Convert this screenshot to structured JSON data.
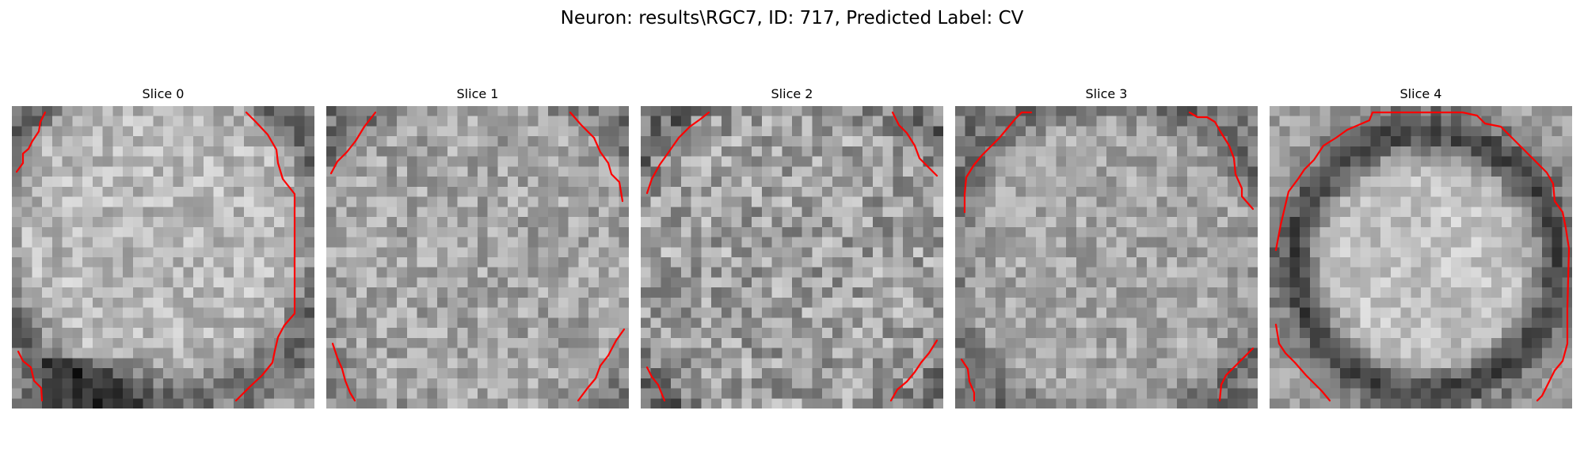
{
  "figure": {
    "title": "Neuron: results\\RGC7, ID: 717, Predicted Label: CV"
  },
  "panels": [
    {
      "title": "Slice 0"
    },
    {
      "title": "Slice 1"
    },
    {
      "title": "Slice 2"
    },
    {
      "title": "Slice 3"
    },
    {
      "title": "Slice 4"
    }
  ],
  "colors": {
    "contour": "#ff0000",
    "colormap": "gray"
  }
}
